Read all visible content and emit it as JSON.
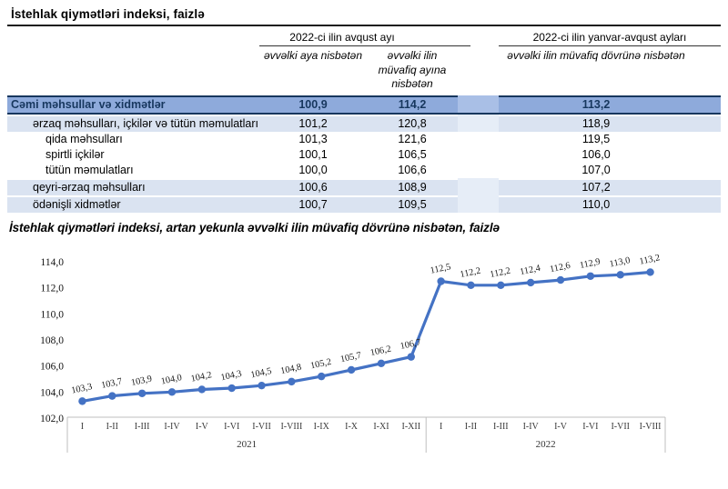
{
  "page_title": "İstehlak qiymətləri indeksi, faizlə",
  "table": {
    "col_groups": [
      {
        "label": "2022-ci ilin avqust ayı"
      },
      {
        "label": "2022-ci ilin yanvar-avqust ayları"
      }
    ],
    "sub_headers": [
      "əvvəlki aya nisbətən",
      "əvvəlki ilin müvafiq ayına nisbətən",
      "əvvəlki ilin müvafiq dövrünə nisbətən"
    ],
    "rows": [
      {
        "label": "Cəmi məhsullar və xidmətlər",
        "values": [
          "100,9",
          "114,2",
          "113,2"
        ],
        "style": "total",
        "indent": 0
      },
      {
        "label": "ərzaq məhsulları, içkilər və tütün məmulatları",
        "values": [
          "101,2",
          "120,8",
          "118,9"
        ],
        "style": "band",
        "indent": 1
      },
      {
        "label": "qida məhsulları",
        "values": [
          "101,3",
          "121,6",
          "119,5"
        ],
        "style": "plain",
        "indent": 2
      },
      {
        "label": "spirtli içkilər",
        "values": [
          "100,1",
          "106,5",
          "106,0"
        ],
        "style": "plain",
        "indent": 2
      },
      {
        "label": "tütün məmulatları",
        "values": [
          "100,0",
          "106,6",
          "107,0"
        ],
        "style": "plain",
        "indent": 2
      },
      {
        "label": "qeyri-ərzaq məhsulları",
        "values": [
          "100,6",
          "108,9",
          "107,2"
        ],
        "style": "band",
        "indent": 1
      },
      {
        "label": "ödənişli xidmətlər",
        "values": [
          "100,7",
          "109,5",
          "110,0"
        ],
        "style": "band",
        "indent": 1
      }
    ]
  },
  "chart_data": {
    "type": "line",
    "title": "İstehlak qiymətləri indeksi, artan yekunla əvvəlki ilin müvafiq dövrünə nisbətən, faizlə",
    "categories": [
      "I",
      "I-II",
      "I-III",
      "I-IV",
      "I-V",
      "I-VI",
      "I-VII",
      "I-VIII",
      "I-IX",
      "I-X",
      "I-XI",
      "I-XII",
      "I",
      "I-II",
      "I-III",
      "I-IV",
      "I-V",
      "I-VI",
      "I-VII",
      "I-VIII"
    ],
    "category_groups": [
      {
        "label": "2021",
        "count": 12
      },
      {
        "label": "2022",
        "count": 8
      }
    ],
    "values": [
      103.3,
      103.7,
      103.9,
      104.0,
      104.2,
      104.3,
      104.5,
      104.8,
      105.2,
      105.7,
      106.2,
      106.7,
      112.5,
      112.2,
      112.2,
      112.4,
      112.6,
      112.9,
      113.0,
      113.2
    ],
    "point_labels": [
      "103,3",
      "103,7",
      "103,9",
      "104,0",
      "104,2",
      "104,3",
      "104,5",
      "104,8",
      "105,2",
      "105,7",
      "106,2",
      "106,7",
      "112,5",
      "112,2",
      "112,2",
      "112,4",
      "112,6",
      "112,9",
      "113,0",
      "113,2"
    ],
    "ylim": [
      102,
      114
    ],
    "ytick_step": 2,
    "ytick_labels": [
      "102,0",
      "104,0",
      "106,0",
      "108,0",
      "110,0",
      "112,0",
      "114,0"
    ],
    "grid": false,
    "legend": false,
    "xlabel": "",
    "ylabel": "",
    "line_color": "#4472C4",
    "marker_color": "#4472C4",
    "axis_box_color": "#BFBFBF",
    "label_color": "#1a1a1a"
  }
}
